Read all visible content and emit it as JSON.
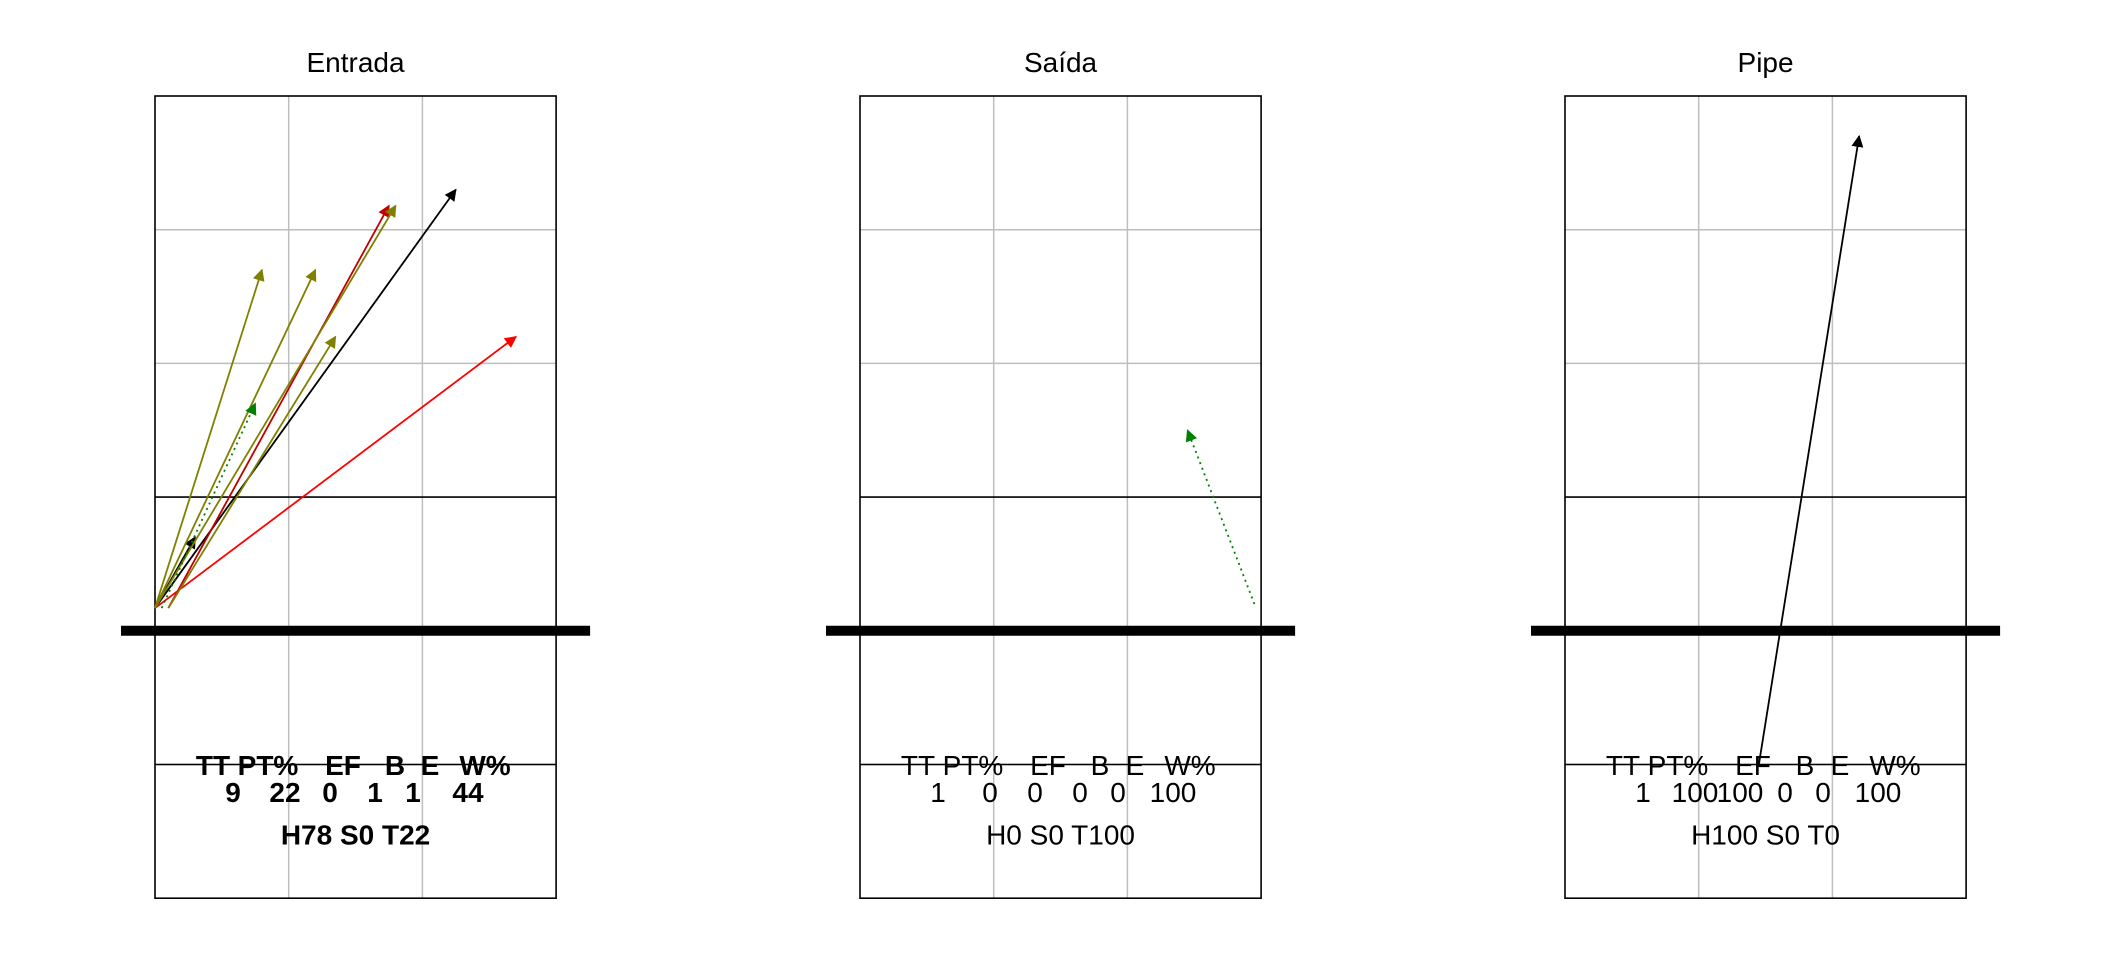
{
  "chart_data": [
    {
      "type": "volleyball-court-arrows",
      "title": "Entrada",
      "stats": {
        "headers": [
          "TT",
          "PT%",
          "EF",
          "B",
          "E",
          "W%"
        ],
        "values": [
          "9",
          "22",
          "0",
          "1",
          "1",
          "44"
        ],
        "summary": "H78 S0 T22"
      },
      "arrows": [
        {
          "from": [
            0.0,
            2.17
          ],
          "to": [
            2.25,
            5.3
          ],
          "color": "#000000",
          "style": "solid"
        },
        {
          "from": [
            0.0,
            2.17
          ],
          "to": [
            0.3,
            2.7
          ],
          "color": "#000000",
          "style": "solid"
        },
        {
          "from": [
            0.1,
            2.17
          ],
          "to": [
            1.75,
            5.18
          ],
          "color": "#c00000",
          "style": "solid"
        },
        {
          "from": [
            0.0,
            2.17
          ],
          "to": [
            2.7,
            4.2
          ],
          "color": "#ff0000",
          "style": "solid"
        },
        {
          "from": [
            0.0,
            2.17
          ],
          "to": [
            1.8,
            5.18
          ],
          "color": "#808000",
          "style": "solid"
        },
        {
          "from": [
            0.0,
            2.17
          ],
          "to": [
            0.8,
            4.7
          ],
          "color": "#808000",
          "style": "solid"
        },
        {
          "from": [
            0.0,
            2.17
          ],
          "to": [
            1.2,
            4.7
          ],
          "color": "#808000",
          "style": "solid"
        },
        {
          "from": [
            0.1,
            2.17
          ],
          "to": [
            1.35,
            4.2
          ],
          "color": "#808000",
          "style": "solid"
        },
        {
          "from": [
            0.05,
            2.17
          ],
          "to": [
            0.75,
            3.7
          ],
          "color": "#008000",
          "style": "dotted"
        }
      ]
    },
    {
      "type": "volleyball-court-arrows",
      "title": "Saída",
      "stats": {
        "headers": [
          "TT",
          "PT%",
          "EF",
          "B",
          "E",
          "W%"
        ],
        "values": [
          "1",
          "0",
          "0",
          "0",
          "0",
          "100"
        ],
        "summary": "H0 S0 T100"
      },
      "arrows": [
        {
          "from": [
            2.95,
            2.2
          ],
          "to": [
            2.45,
            3.5
          ],
          "color": "#008000",
          "style": "dotted"
        }
      ]
    },
    {
      "type": "volleyball-court-arrows",
      "title": "Pipe",
      "stats": {
        "headers": [
          "TT",
          "PT%",
          "EF",
          "B",
          "E",
          "W%"
        ],
        "values": [
          "1",
          "100",
          "100",
          "0",
          "0",
          "100"
        ],
        "summary": "H100 S0 T0"
      },
      "arrows": [
        {
          "from": [
            1.45,
            1.0
          ],
          "to": [
            2.2,
            5.7
          ],
          "color": "#000000",
          "style": "solid"
        }
      ]
    }
  ]
}
